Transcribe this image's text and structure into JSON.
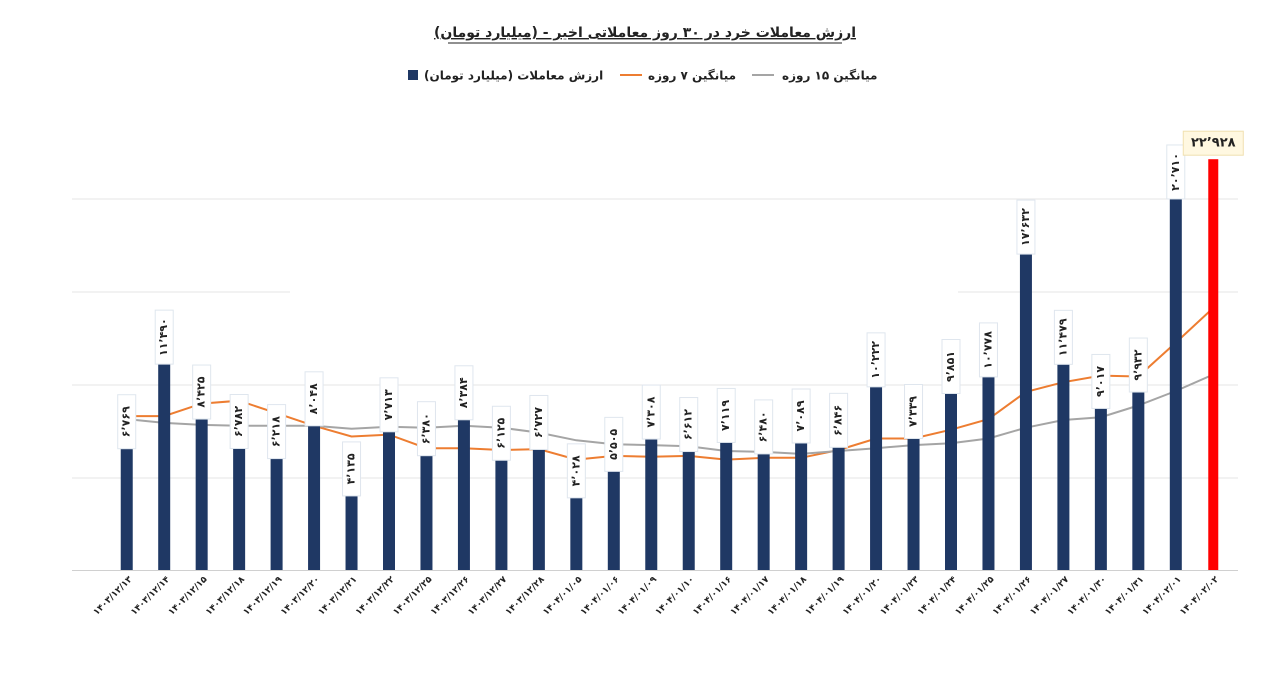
{
  "chart_data": {
    "type": "bar",
    "title": "ارزش معاملات خرد در ۳۰ روز معاملاتی اخیر - (میلیارد تومان)",
    "categories": [
      "۱۴۰۳/۱۲/۱۳",
      "۱۴۰۳/۱۲/۱۴",
      "۱۴۰۳/۱۲/۱۵",
      "۱۴۰۳/۱۲/۱۸",
      "۱۴۰۳/۱۲/۱۹",
      "۱۴۰۳/۱۲/۲۰",
      "۱۴۰۳/۱۲/۲۱",
      "۱۴۰۳/۱۲/۲۲",
      "۱۴۰۳/۱۲/۲۵",
      "۱۴۰۳/۱۲/۲۶",
      "۱۴۰۳/۱۲/۲۷",
      "۱۴۰۳/۱۲/۲۸",
      "۱۴۰۴/۰۱/۰۵",
      "۱۴۰۴/۰۱/۰۶",
      "۱۴۰۴/۰۱/۰۹",
      "۱۴۰۴/۰۱/۱۰",
      "۱۴۰۴/۰۱/۱۶",
      "۱۴۰۴/۰۱/۱۷",
      "۱۴۰۴/۰۱/۱۸",
      "۱۴۰۴/۰۱/۱۹",
      "۱۴۰۴/۰۱/۲۰",
      "۱۴۰۴/۰۱/۲۳",
      "۱۴۰۴/۰۱/۲۴",
      "۱۴۰۴/۰۱/۲۵",
      "۱۴۰۴/۰۱/۲۶",
      "۱۴۰۴/۰۱/۲۷",
      "۱۴۰۴/۰۱/۳۰",
      "۱۴۰۴/۰۱/۳۱",
      "۱۴۰۴/۰۲/۰۱",
      "۱۴۰۴/۰۲/۰۲"
    ],
    "series": [
      {
        "name": "ارزش معاملات (میلیارد تومان)",
        "kind": "bar",
        "color": "#1f3864",
        "colors": [
          "#1f3864",
          "#1f3864",
          "#1f3864",
          "#1f3864",
          "#1f3864",
          "#1f3864",
          "#1f3864",
          "#1f3864",
          "#1f3864",
          "#1f3864",
          "#1f3864",
          "#1f3864",
          "#1f3864",
          "#1f3864",
          "#1f3864",
          "#1f3864",
          "#1f3864",
          "#1f3864",
          "#1f3864",
          "#1f3864",
          "#1f3864",
          "#1f3864",
          "#1f3864",
          "#1f3864",
          "#1f3864",
          "#1f3864",
          "#1f3864",
          "#1f3864",
          "#1f3864",
          "#ff0000"
        ],
        "values": [
          6769,
          11490,
          8425,
          6782,
          6218,
          8048,
          4135,
          7713,
          6380,
          8384,
          6125,
          6727,
          4028,
          5505,
          7308,
          6612,
          7119,
          6480,
          7089,
          6846,
          10222,
          7339,
          9851,
          10778,
          17632,
          11479,
          9017,
          9932,
          20710,
          22928
        ],
        "value_labels": [
          "۶٬۷۶۹",
          "۱۱٬۴۹۰",
          "۸٬۴۲۵",
          "۶٬۷۸۲",
          "۶٬۲۱۸",
          "۸٬۰۴۸",
          "۴٬۱۳۵",
          "۷٬۷۱۳",
          "۶٬۳۸۰",
          "۸٬۳۸۴",
          "۶٬۱۲۵",
          "۶٬۷۲۷",
          "۴٬۰۲۸",
          "۵٬۵۰۵",
          "۷٬۳۰۸",
          "۶٬۶۱۲",
          "۷٬۱۱۹",
          "۶٬۴۸۰",
          "۷٬۰۸۹",
          "۶٬۸۴۶",
          "۱۰٬۲۲۲",
          "۷٬۳۳۹",
          "۹٬۸۵۱",
          "۱۰٬۷۷۸",
          "۱۷٬۶۳۲",
          "۱۱٬۴۷۹",
          "۹٬۰۱۷",
          "۹٬۹۳۲",
          "۲۰٬۷۱۰",
          "۲۲٬۹۲۸"
        ]
      },
      {
        "name": "میانگین ۷ روزه",
        "kind": "line",
        "color": "#ed7d31",
        "values": [
          8590,
          8590,
          9290,
          9450,
          8750,
          8050,
          7450,
          7560,
          6800,
          6800,
          6700,
          6750,
          6160,
          6370,
          6320,
          6370,
          6160,
          6260,
          6260,
          6700,
          7340,
          7340,
          7830,
          8420,
          9940,
          10480,
          10850,
          10800,
          12690,
          14630
        ]
      },
      {
        "name": "میانگین ۱۵ روزه",
        "kind": "line",
        "color": "#a5a5a5",
        "values": [
          8420,
          8210,
          8100,
          8050,
          8050,
          8050,
          7880,
          7990,
          7940,
          8050,
          7940,
          7670,
          7240,
          7020,
          6970,
          6910,
          6640,
          6590,
          6480,
          6640,
          6800,
          6970,
          7070,
          7340,
          7940,
          8370,
          8530,
          9180,
          9990,
          10910
        ]
      }
    ],
    "ylim": [
      0,
      24000
    ]
  }
}
